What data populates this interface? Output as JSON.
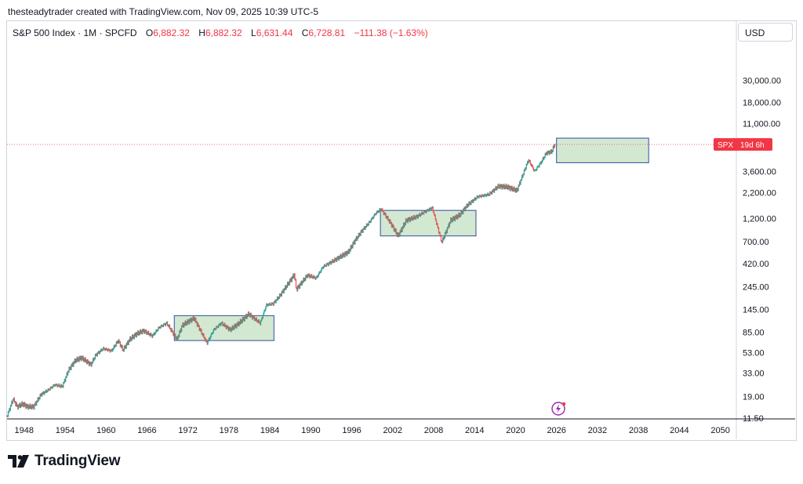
{
  "header": {
    "attribution": "thesteadytrader created with TradingView.com, Nov 09, 2025 10:39 UTC-5"
  },
  "legend": {
    "symbol": "S&P 500 Index · 1M · SPCFD",
    "open_label": "O",
    "open": "6,882.32",
    "high_label": "H",
    "high": "6,882.32",
    "low_label": "L",
    "low": "6,631.44",
    "close_label": "C",
    "close": "6,728.81",
    "change": "−111.38 (−1.63%)"
  },
  "currency_button": "USD",
  "price_badge": {
    "symbol": "SPX",
    "countdown": "19d 6h"
  },
  "brand": {
    "name": "TradingView"
  },
  "colors": {
    "up": "#26a69a",
    "down": "#ef5350",
    "box_fill": "#d3e8d1",
    "box_stroke": "#2f4f9e",
    "badge": "#f23645",
    "price_line": "#f23645"
  },
  "chart_data": {
    "type": "line",
    "title": "S&P 500 Index · 1M · SPCFD",
    "y_scale": "log",
    "ylim": [
      11.5,
      65000
    ],
    "xlim": [
      1945.5,
      2052
    ],
    "y_ticks": [
      "30,000.00",
      "18,000.00",
      "11,000.00",
      "3,600.00",
      "2,200.00",
      "1,200.00",
      "700.00",
      "420.00",
      "245.00",
      "145.00",
      "85.00",
      "53.00",
      "33.00",
      "19.00",
      "11.50"
    ],
    "y_tick_values": [
      30000,
      18000,
      11000,
      3600,
      2200,
      1200,
      700,
      420,
      245,
      145,
      85,
      53,
      33,
      19,
      11.5
    ],
    "x_ticks": [
      "1948",
      "1954",
      "1960",
      "1966",
      "1972",
      "1978",
      "1984",
      "1990",
      "1996",
      "2002",
      "2008",
      "2014",
      "2020",
      "2026",
      "2032",
      "2038",
      "2044",
      "2050"
    ],
    "x_tick_values": [
      1948,
      1954,
      1960,
      1966,
      1972,
      1978,
      1984,
      1990,
      1996,
      2002,
      2008,
      2014,
      2020,
      2026,
      2032,
      2038,
      2044,
      2050
    ],
    "series": [
      {
        "x": [
          1945.5,
          1946.4,
          1947.0,
          1947.8,
          1948.5,
          1949.4,
          1950.5,
          1951.5,
          1952.5,
          1953.6,
          1954.5,
          1955.5,
          1956.4,
          1957.8,
          1958.5,
          1959.6,
          1960.8,
          1961.8,
          1962.5,
          1963.5,
          1964.5,
          1965.5,
          1966.8,
          1967.8,
          1968.9,
          1970.4,
          1971.2,
          1972.9,
          1974.8,
          1975.8,
          1976.9,
          1978.2,
          1979.5,
          1980.9,
          1982.6,
          1983.5,
          1984.5,
          1985.5,
          1987.6,
          1987.9,
          1989.5,
          1990.8,
          1991.8,
          1993.5,
          1995.5,
          1996.5,
          1997.5,
          1998.6,
          1999.5,
          2000.3,
          2001.7,
          2002.8,
          2004.0,
          2005.5,
          2007.8,
          2009.2,
          2010.5,
          2011.8,
          2013.0,
          2014.5,
          2016.1,
          2017.5,
          2018.8,
          2020.2,
          2021.9,
          2022.8,
          2023.8,
          2024.5,
          2025.3,
          2025.8
        ],
        "values": [
          12,
          18,
          15,
          16,
          15,
          15,
          20,
          22,
          25,
          24,
          35,
          44,
          47,
          40,
          50,
          58,
          55,
          70,
          56,
          72,
          82,
          88,
          78,
          95,
          105,
          72,
          100,
          118,
          66,
          90,
          105,
          90,
          105,
          130,
          105,
          160,
          165,
          200,
          325,
          230,
          320,
          300,
          390,
          455,
          550,
          720,
          900,
          1100,
          1350,
          1500,
          1080,
          800,
          1150,
          1250,
          1550,
          690,
          1150,
          1300,
          1650,
          2000,
          2100,
          2550,
          2500,
          2300,
          4700,
          3600,
          4500,
          5500,
          5700,
          6880
        ]
      }
    ],
    "annotations": [
      {
        "type": "box",
        "x": [
          1970.0,
          1984.6
        ],
        "y": [
          70,
          125
        ]
      },
      {
        "type": "box",
        "x": [
          2000.2,
          2014.2
        ],
        "y": [
          800,
          1450
        ]
      },
      {
        "type": "box",
        "x": [
          2026.0,
          2039.5
        ],
        "y": [
          4400,
          7800
        ]
      }
    ],
    "last_price": 6728.81
  }
}
